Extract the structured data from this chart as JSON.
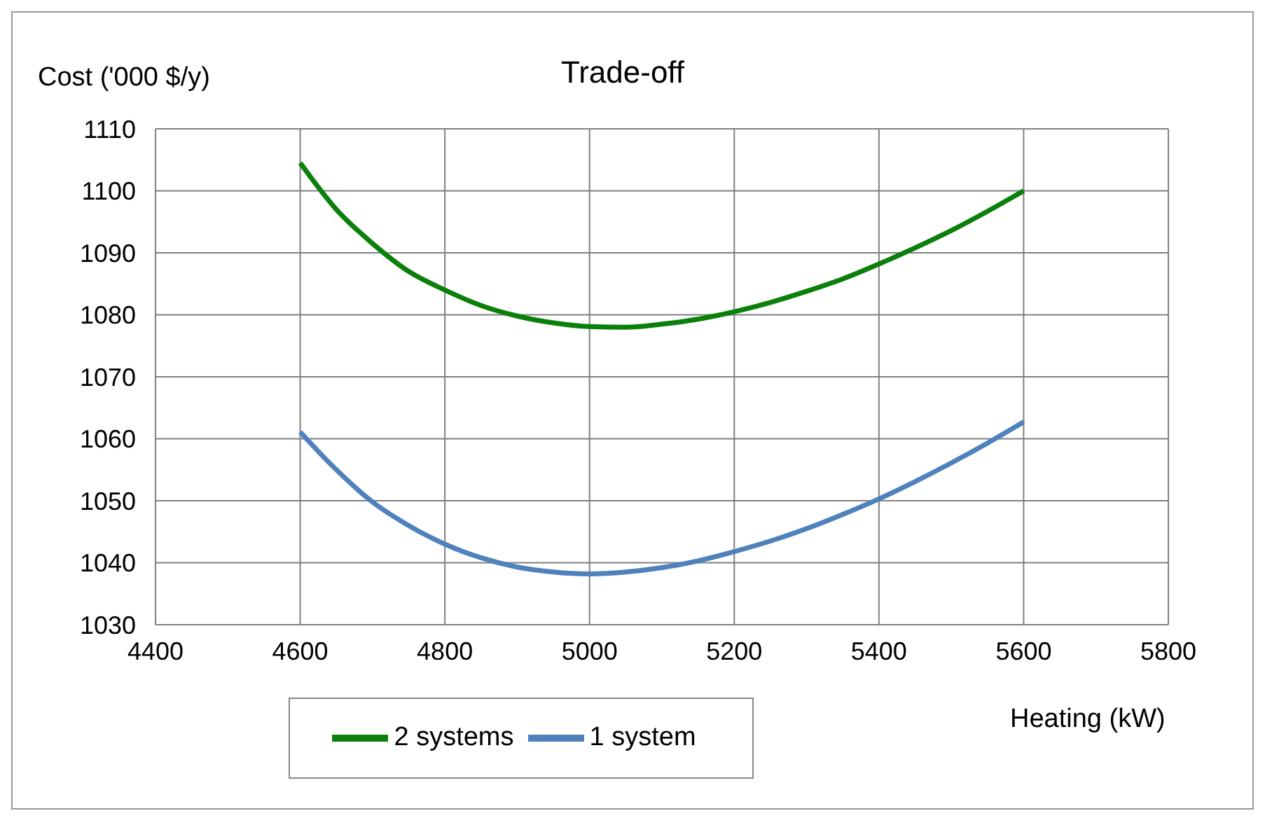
{
  "chart_data": {
    "type": "line",
    "title": "Trade-off",
    "xlabel": "Heating (kW)",
    "ylabel": "Cost ('000 $/y)",
    "x": [
      4600,
      4650,
      4700,
      4750,
      4800,
      4850,
      4900,
      4950,
      5000,
      5050,
      5100,
      5150,
      5200,
      5250,
      5300,
      5350,
      5400,
      5450,
      5500,
      5550,
      5600
    ],
    "series": [
      {
        "name": "2 systems",
        "color": "#0a800a",
        "values": [
          1104.5,
          1097,
          1091.5,
          1087,
          1084,
          1081.5,
          1079.8,
          1078.7,
          1078.1,
          1078,
          1078.5,
          1079.3,
          1080.5,
          1082,
          1083.8,
          1085.8,
          1088.2,
          1090.8,
          1093.6,
          1096.7,
          1100
        ]
      },
      {
        "name": "1 system",
        "color": "#4f81bd",
        "values": [
          1061.1,
          1055,
          1049.8,
          1046,
          1043,
          1040.8,
          1039.3,
          1038.5,
          1038.2,
          1038.5,
          1039.2,
          1040.3,
          1041.8,
          1043.5,
          1045.5,
          1047.8,
          1050.3,
          1053.1,
          1056.1,
          1059.3,
          1062.7
        ]
      }
    ],
    "xlim": [
      4400,
      5800
    ],
    "xticks": [
      4400,
      4600,
      4800,
      5000,
      5200,
      5400,
      5600,
      5800
    ],
    "ylim": [
      1030,
      1110
    ],
    "yticks": [
      1030,
      1040,
      1050,
      1060,
      1070,
      1080,
      1090,
      1100,
      1110
    ],
    "grid": true,
    "legend": "bottom",
    "marker": "none",
    "line_style": "solid"
  }
}
